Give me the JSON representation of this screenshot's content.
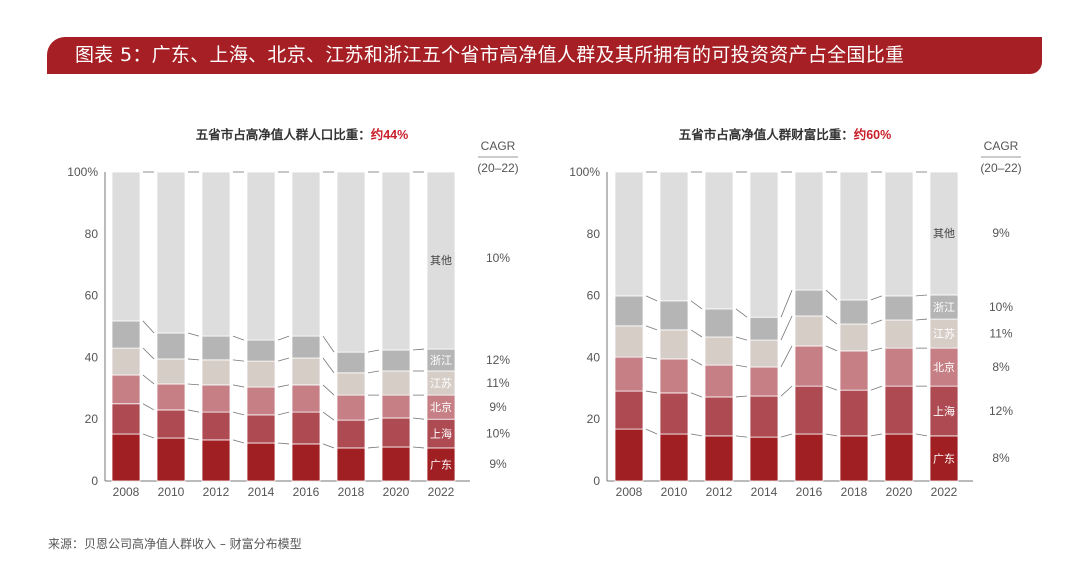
{
  "banner": {
    "title": "图表 5：广东、上海、北京、江苏和浙江五个省市高净值人群及其所拥有的可投资资产占全国比重"
  },
  "source": "来源：贝恩公司高净值人群收入 – 财富分布模型",
  "colors": {
    "banner": "#a51f24",
    "highlight": "#c8202b",
    "广东": "#9f1f22",
    "上海": "#ad4a52",
    "北京": "#c57f85",
    "江苏": "#d6cdc7",
    "浙江": "#b4b5b4",
    "其他": "#dcdddc"
  },
  "chart_data": [
    {
      "type": "bar",
      "stacked": true,
      "title_prefix": "五省市占高净值人群人口比重：",
      "title_highlight": "约44%",
      "categories": [
        "2008",
        "2010",
        "2012",
        "2014",
        "2016",
        "2018",
        "2020",
        "2022"
      ],
      "ylim": [
        0,
        100
      ],
      "yticks": [
        "0",
        "20",
        "40",
        "60",
        "80",
        "100%"
      ],
      "cagr_header": "CAGR",
      "cagr_period": "(20–22)",
      "series": [
        {
          "name": "广东",
          "values": [
            15.2,
            13.9,
            13.3,
            12.3,
            12.0,
            10.7,
            11.0,
            10.7
          ],
          "cagr": "9%"
        },
        {
          "name": "上海",
          "values": [
            9.8,
            9.1,
            9.0,
            9.1,
            10.3,
            9.0,
            9.4,
            9.3
          ],
          "cagr": "10%"
        },
        {
          "name": "北京",
          "values": [
            9.3,
            8.4,
            8.8,
            9.0,
            8.8,
            8.1,
            7.4,
            7.8
          ],
          "cagr": "9%"
        },
        {
          "name": "江苏",
          "values": [
            8.7,
            8.1,
            8.1,
            8.4,
            8.7,
            7.2,
            7.8,
            7.8
          ],
          "cagr": "11%"
        },
        {
          "name": "浙江",
          "values": [
            8.8,
            8.4,
            7.7,
            6.8,
            7.1,
            6.7,
            6.8,
            7.1
          ],
          "cagr": "12%"
        },
        {
          "name": "其他",
          "values": [
            48.2,
            52.1,
            53.1,
            54.4,
            53.1,
            58.3,
            57.6,
            57.3
          ],
          "cagr": "10%"
        }
      ]
    },
    {
      "type": "bar",
      "stacked": true,
      "title_prefix": "五省市占高净值人群财富比重：",
      "title_highlight": "约60%",
      "categories": [
        "2008",
        "2010",
        "2012",
        "2014",
        "2016",
        "2018",
        "2020",
        "2022"
      ],
      "ylim": [
        0,
        100
      ],
      "yticks": [
        "0",
        "20",
        "40",
        "60",
        "80",
        "100%"
      ],
      "cagr_header": "CAGR",
      "cagr_period": "(20–22)",
      "series": [
        {
          "name": "广东",
          "values": [
            16.8,
            15.2,
            14.6,
            14.2,
            15.2,
            14.6,
            15.2,
            14.6
          ],
          "cagr": "8%"
        },
        {
          "name": "上海",
          "values": [
            12.3,
            13.3,
            12.6,
            13.3,
            15.5,
            14.8,
            15.5,
            16.1
          ],
          "cagr": "12%"
        },
        {
          "name": "北京",
          "values": [
            11.0,
            11.0,
            10.3,
            9.4,
            13.0,
            12.7,
            12.3,
            12.3
          ],
          "cagr": "8%"
        },
        {
          "name": "江苏",
          "values": [
            10.1,
            9.4,
            9.1,
            8.7,
            9.7,
            8.7,
            9.1,
            9.4
          ],
          "cagr": "11%"
        },
        {
          "name": "浙江",
          "values": [
            9.7,
            9.4,
            9.1,
            7.4,
            8.4,
            7.8,
            7.8,
            7.8
          ],
          "cagr": "10%"
        },
        {
          "name": "其他",
          "values": [
            40.1,
            41.7,
            44.3,
            47.0,
            38.2,
            41.4,
            40.1,
            39.8
          ],
          "cagr": "9%"
        }
      ]
    }
  ]
}
